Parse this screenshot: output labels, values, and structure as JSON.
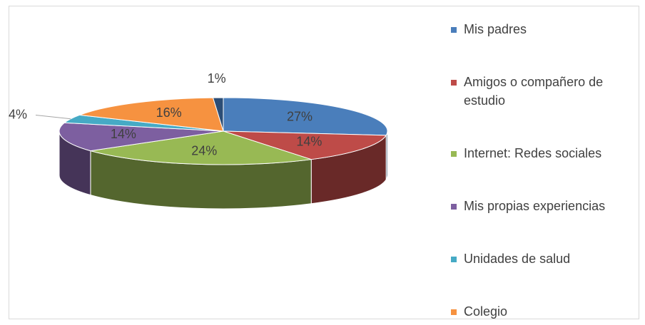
{
  "chart_data": {
    "type": "pie",
    "categories": [
      "Mis padres",
      "Amigos o compañero de estudio",
      "Internet: Redes sociales",
      "Mis propias experiencias",
      "Unidades de salud",
      "Colegio",
      null
    ],
    "values": [
      27,
      14,
      24,
      14,
      4,
      16,
      1
    ],
    "value_labels": [
      "27%",
      "14%",
      "24%",
      "14%",
      "4%",
      "16%",
      "1%"
    ],
    "colors": [
      "#4a7ebb",
      "#be4b48",
      "#98b954",
      "#7d5fa0",
      "#46aac5",
      "#f69240",
      "#2c4d75"
    ],
    "legend": "right"
  }
}
